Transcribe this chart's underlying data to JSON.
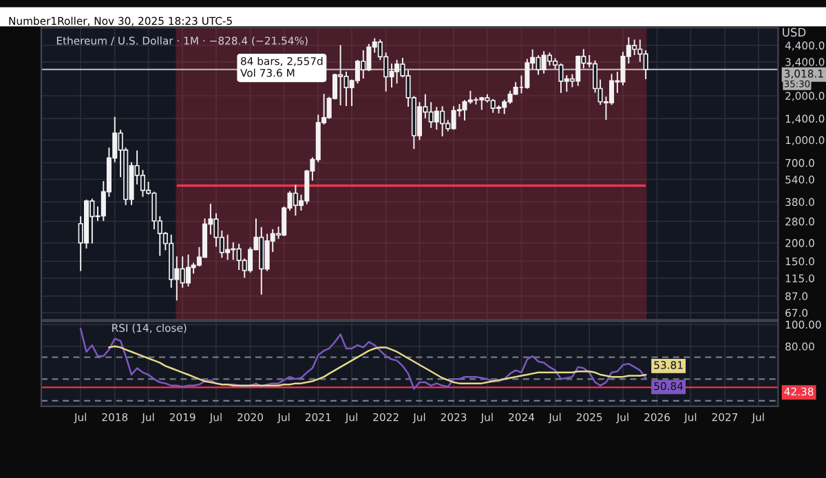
{
  "chart_data": [
    {
      "type": "candlestick",
      "title": "Ethereum / U.S. Dollar · 1M · −828.4 (−21.54%)",
      "ylabel": "USD",
      "annotations": [
        "Number1Roller, Nov 30, 2025 18:23 UTC-5",
        "84 bars, 2,557d\nVol 73.6 M",
        "35:30"
      ],
      "color": "#f2f2f2",
      "log": "y",
      "grid": true,
      "tick_labels": "y",
      "xlim": [
        "2016-12-01",
        "2027-10-15"
      ],
      "xticks": [
        {
          "value": "2017-07-01",
          "label": null
        },
        {
          "value": "2018-01-01",
          "label": null
        },
        {
          "value": "2018-07-01",
          "label": null
        },
        {
          "value": "2019-01-01",
          "label": null
        },
        {
          "value": "2019-07-01",
          "label": null
        },
        {
          "value": "2020-01-01",
          "label": null
        },
        {
          "value": "2020-07-01",
          "label": null
        },
        {
          "value": "2021-01-01",
          "label": null
        },
        {
          "value": "2021-07-01",
          "label": null
        },
        {
          "value": "2022-01-01",
          "label": null
        },
        {
          "value": "2022-07-01",
          "label": null
        },
        {
          "value": "2023-01-01",
          "label": null
        },
        {
          "value": "2023-07-01",
          "label": null
        },
        {
          "value": "2024-01-01",
          "label": null
        },
        {
          "value": "2024-07-01",
          "label": null
        },
        {
          "value": "2025-01-01",
          "label": null
        },
        {
          "value": "2025-07-01",
          "label": null
        },
        {
          "value": "2026-01-01",
          "label": null
        },
        {
          "value": "2026-07-01",
          "label": null
        },
        {
          "value": "2027-01-01",
          "label": null
        },
        {
          "value": "2027-07-01",
          "label": null
        }
      ],
      "ylim": [
        60,
        5800
      ],
      "yticks": [
        {
          "value": 67,
          "label": "67.0"
        },
        {
          "value": 87,
          "label": "87.0"
        },
        {
          "value": 115,
          "label": "115.0"
        },
        {
          "value": 150,
          "label": "150.0"
        },
        {
          "value": 200,
          "label": "200.0"
        },
        {
          "value": 280,
          "label": "280.0"
        },
        {
          "value": 380,
          "label": "380.0"
        },
        {
          "value": 540,
          "label": "540.0"
        },
        {
          "value": 700,
          "label": "700.0"
        },
        {
          "value": 1000,
          "label": "1,000.0"
        },
        {
          "value": 1400,
          "label": "1,400.0"
        },
        {
          "value": 2000,
          "label": "2,000.0"
        },
        {
          "value": 3400,
          "label": "3,400.0"
        },
        {
          "value": 4400,
          "label": "4,400.0"
        }
      ],
      "bands": [
        {
          "axis": "x",
          "from": "2018-12-01",
          "to": "2025-11-01",
          "color": "#b0283a"
        }
      ],
      "ref_lines": [
        {
          "axis": "y",
          "value": 490,
          "color": "#e8394d"
        },
        {
          "axis": "y",
          "value": 3018.1,
          "label": "3,018.1",
          "color": "#b0b0b0"
        }
      ],
      "x": [
        "2017-07",
        "2017-08",
        "2017-09",
        "2017-10",
        "2017-11",
        "2017-12",
        "2018-01",
        "2018-02",
        "2018-03",
        "2018-04",
        "2018-05",
        "2018-06",
        "2018-07",
        "2018-08",
        "2018-09",
        "2018-10",
        "2018-11",
        "2018-12",
        "2019-01",
        "2019-02",
        "2019-03",
        "2019-04",
        "2019-05",
        "2019-06",
        "2019-07",
        "2019-08",
        "2019-09",
        "2019-10",
        "2019-11",
        "2019-12",
        "2020-01",
        "2020-02",
        "2020-03",
        "2020-04",
        "2020-05",
        "2020-06",
        "2020-07",
        "2020-08",
        "2020-09",
        "2020-10",
        "2020-11",
        "2020-12",
        "2021-01",
        "2021-02",
        "2021-03",
        "2021-04",
        "2021-05",
        "2021-06",
        "2021-07",
        "2021-08",
        "2021-09",
        "2021-10",
        "2021-11",
        "2021-12",
        "2022-01",
        "2022-02",
        "2022-03",
        "2022-04",
        "2022-05",
        "2022-06",
        "2022-07",
        "2022-08",
        "2022-09",
        "2022-10",
        "2022-11",
        "2022-12",
        "2023-01",
        "2023-02",
        "2023-03",
        "2023-04",
        "2023-05",
        "2023-06",
        "2023-07",
        "2023-08",
        "2023-09",
        "2023-10",
        "2023-11",
        "2023-12",
        "2024-01",
        "2024-02",
        "2024-03",
        "2024-04",
        "2024-05",
        "2024-06",
        "2024-07",
        "2024-08",
        "2024-09",
        "2024-10",
        "2024-11",
        "2024-12",
        "2025-01",
        "2025-02",
        "2025-03",
        "2025-04",
        "2025-05",
        "2025-06",
        "2025-07",
        "2025-08",
        "2025-09",
        "2025-10",
        "2025-11"
      ],
      "ohlc": [
        [
          270,
          300,
          130,
          200
        ],
        [
          200,
          390,
          185,
          385
        ],
        [
          385,
          395,
          200,
          302
        ],
        [
          302,
          350,
          285,
          305
        ],
        [
          305,
          520,
          285,
          445
        ],
        [
          445,
          880,
          415,
          755
        ],
        [
          755,
          1420,
          715,
          1115
        ],
        [
          1115,
          1160,
          565,
          855
        ],
        [
          855,
          880,
          365,
          395
        ],
        [
          395,
          700,
          365,
          670
        ],
        [
          670,
          840,
          505,
          575
        ],
        [
          575,
          620,
          415,
          455
        ],
        [
          455,
          515,
          430,
          435
        ],
        [
          435,
          440,
          250,
          282
        ],
        [
          282,
          300,
          165,
          232
        ],
        [
          232,
          235,
          180,
          198
        ],
        [
          198,
          225,
          100,
          113
        ],
        [
          113,
          160,
          82,
          133
        ],
        [
          133,
          160,
          100,
          107
        ],
        [
          107,
          165,
          102,
          136
        ],
        [
          136,
          145,
          125,
          141
        ],
        [
          141,
          185,
          140,
          160
        ],
        [
          160,
          290,
          160,
          268
        ],
        [
          268,
          365,
          230,
          290
        ],
        [
          290,
          315,
          190,
          218
        ],
        [
          218,
          240,
          160,
          172
        ],
        [
          172,
          225,
          155,
          180
        ],
        [
          180,
          200,
          155,
          182
        ],
        [
          182,
          195,
          132,
          152
        ],
        [
          152,
          155,
          117,
          130
        ],
        [
          130,
          185,
          127,
          180
        ],
        [
          180,
          290,
          180,
          218
        ],
        [
          218,
          253,
          90,
          133
        ],
        [
          133,
          228,
          130,
          206
        ],
        [
          206,
          245,
          175,
          231
        ],
        [
          231,
          255,
          215,
          226
        ],
        [
          226,
          350,
          225,
          345
        ],
        [
          345,
          445,
          335,
          435
        ],
        [
          435,
          490,
          310,
          360
        ],
        [
          360,
          420,
          335,
          386
        ],
        [
          386,
          620,
          370,
          616
        ],
        [
          616,
          755,
          535,
          737
        ],
        [
          737,
          1470,
          714,
          1312
        ],
        [
          1312,
          2040,
          1290,
          1420
        ],
        [
          1420,
          1945,
          1410,
          1920
        ],
        [
          1920,
          2795,
          1910,
          2775
        ],
        [
          2775,
          4370,
          1740,
          2710
        ],
        [
          2710,
          2890,
          1720,
          2275
        ],
        [
          2275,
          2550,
          1720,
          2535
        ],
        [
          2535,
          3470,
          2450,
          3430
        ],
        [
          3430,
          4030,
          2650,
          3000
        ],
        [
          3000,
          4460,
          2970,
          4290
        ],
        [
          4290,
          4870,
          3960,
          4630
        ],
        [
          4630,
          4780,
          3530,
          3680
        ],
        [
          3680,
          3890,
          2160,
          2690
        ],
        [
          2690,
          3280,
          2300,
          2920
        ],
        [
          2920,
          3480,
          2450,
          3280
        ],
        [
          3280,
          3580,
          2700,
          2730
        ],
        [
          2730,
          2950,
          1700,
          1940
        ],
        [
          1940,
          1970,
          880,
          1070
        ],
        [
          1070,
          1790,
          1010,
          1680
        ],
        [
          1680,
          2030,
          1420,
          1550
        ],
        [
          1550,
          1790,
          1220,
          1330
        ],
        [
          1330,
          1660,
          1190,
          1570
        ],
        [
          1570,
          1680,
          1070,
          1295
        ],
        [
          1295,
          1350,
          1160,
          1195
        ],
        [
          1195,
          1680,
          1190,
          1585
        ],
        [
          1585,
          1740,
          1460,
          1605
        ],
        [
          1605,
          1850,
          1370,
          1820
        ],
        [
          1820,
          2140,
          1780,
          1870
        ],
        [
          1870,
          1930,
          1760,
          1875
        ],
        [
          1875,
          1940,
          1620,
          1935
        ],
        [
          1935,
          2030,
          1820,
          1855
        ],
        [
          1855,
          1880,
          1550,
          1645
        ],
        [
          1645,
          1700,
          1530,
          1670
        ],
        [
          1670,
          1860,
          1520,
          1815
        ],
        [
          1815,
          2140,
          1780,
          2050
        ],
        [
          2050,
          2450,
          2050,
          2280
        ],
        [
          2280,
          2720,
          2100,
          2280
        ],
        [
          2280,
          3520,
          2260,
          3340
        ],
        [
          3340,
          4090,
          3060,
          3640
        ],
        [
          3640,
          3730,
          2810,
          3010
        ],
        [
          3010,
          3980,
          2860,
          3760
        ],
        [
          3760,
          3890,
          3240,
          3440
        ],
        [
          3440,
          3560,
          3080,
          3235
        ],
        [
          3235,
          3280,
          2110,
          2510
        ],
        [
          2510,
          2730,
          2150,
          2600
        ],
        [
          2600,
          2770,
          2310,
          2515
        ],
        [
          2515,
          3710,
          2360,
          3700
        ],
        [
          3700,
          4110,
          3100,
          3335
        ],
        [
          3335,
          3740,
          3150,
          3300
        ],
        [
          3300,
          3440,
          2120,
          2240
        ],
        [
          2240,
          2550,
          1750,
          1820
        ],
        [
          1820,
          1955,
          1385,
          1795
        ],
        [
          1795,
          2790,
          1750,
          2530
        ],
        [
          2530,
          2880,
          2110,
          2485
        ],
        [
          2485,
          3940,
          2375,
          3700
        ],
        [
          3700,
          4950,
          3350,
          4390
        ],
        [
          4390,
          4770,
          3820,
          4140
        ],
        [
          4140,
          4760,
          3440,
          3846.5
        ],
        [
          3846.5,
          4030,
          2620,
          3018.1
        ]
      ]
    },
    {
      "type": "line",
      "annotations": [
        "RSI (14, close)"
      ],
      "grid": true,
      "xlim": [
        "2016-12-01",
        "2027-10-15"
      ],
      "xticks": [
        {
          "value": "2017-07-01",
          "label": "Jul"
        },
        {
          "value": "2018-01-01",
          "label": "2018"
        },
        {
          "value": "2018-07-01",
          "label": "Jul"
        },
        {
          "value": "2019-01-01",
          "label": "2019"
        },
        {
          "value": "2019-07-01",
          "label": "Jul"
        },
        {
          "value": "2020-01-01",
          "label": "2020"
        },
        {
          "value": "2020-07-01",
          "label": "Jul"
        },
        {
          "value": "2021-01-01",
          "label": "2021"
        },
        {
          "value": "2021-07-01",
          "label": "Jul"
        },
        {
          "value": "2022-01-01",
          "label": "2022"
        },
        {
          "value": "2022-07-01",
          "label": "Jul"
        },
        {
          "value": "2023-01-01",
          "label": "2023"
        },
        {
          "value": "2023-07-01",
          "label": "Jul"
        },
        {
          "value": "2024-01-01",
          "label": "2024"
        },
        {
          "value": "2024-07-01",
          "label": "Jul"
        },
        {
          "value": "2025-01-01",
          "label": "2025"
        },
        {
          "value": "2025-07-01",
          "label": "Jul"
        },
        {
          "value": "2026-01-01",
          "label": "2026"
        },
        {
          "value": "2026-07-01",
          "label": "Jul"
        },
        {
          "value": "2027-01-01",
          "label": "2027"
        },
        {
          "value": "2027-07-01",
          "label": "Jul"
        }
      ],
      "ylim": [
        25,
        103
      ],
      "yticks": [
        {
          "value": 80,
          "label": "80.00"
        },
        {
          "value": 100,
          "label": "100.00"
        }
      ],
      "ref_lines": [
        {
          "axis": "y",
          "value": 70,
          "color": "#787b86",
          "line_style": "dashed"
        },
        {
          "axis": "y",
          "value": 50,
          "color": "#787b86",
          "line_style": "dashed"
        },
        {
          "axis": "y",
          "value": 30,
          "color": "#787b86",
          "line_style": "dashed"
        },
        {
          "axis": "y",
          "value": 42.38,
          "label": "42.38",
          "color": "#f23645"
        }
      ],
      "x": [
        "2017-07",
        "2017-08",
        "2017-09",
        "2017-10",
        "2017-11",
        "2017-12",
        "2018-01",
        "2018-02",
        "2018-03",
        "2018-04",
        "2018-05",
        "2018-06",
        "2018-07",
        "2018-08",
        "2018-09",
        "2018-10",
        "2018-11",
        "2018-12",
        "2019-01",
        "2019-02",
        "2019-03",
        "2019-04",
        "2019-05",
        "2019-06",
        "2019-07",
        "2019-08",
        "2019-09",
        "2019-10",
        "2019-11",
        "2019-12",
        "2020-01",
        "2020-02",
        "2020-03",
        "2020-04",
        "2020-05",
        "2020-06",
        "2020-07",
        "2020-08",
        "2020-09",
        "2020-10",
        "2020-11",
        "2020-12",
        "2021-01",
        "2021-02",
        "2021-03",
        "2021-04",
        "2021-05",
        "2021-06",
        "2021-07",
        "2021-08",
        "2021-09",
        "2021-10",
        "2021-11",
        "2021-12",
        "2022-01",
        "2022-02",
        "2022-03",
        "2022-04",
        "2022-05",
        "2022-06",
        "2022-07",
        "2022-08",
        "2022-09",
        "2022-10",
        "2022-11",
        "2022-12",
        "2023-01",
        "2023-02",
        "2023-03",
        "2023-04",
        "2023-05",
        "2023-06",
        "2023-07",
        "2023-08",
        "2023-09",
        "2023-10",
        "2023-11",
        "2023-12",
        "2024-01",
        "2024-02",
        "2024-03",
        "2024-04",
        "2024-05",
        "2024-06",
        "2024-07",
        "2024-08",
        "2024-09",
        "2024-10",
        "2024-11",
        "2024-12",
        "2025-01",
        "2025-02",
        "2025-03",
        "2025-04",
        "2025-05",
        "2025-06",
        "2025-07",
        "2025-08",
        "2025-09",
        "2025-10",
        "2025-11"
      ],
      "series": [
        {
          "color": "#7e57c2",
          "value_labels": [
            null,
            null,
            null,
            null,
            null,
            null,
            null,
            null,
            null,
            null,
            null,
            null,
            null,
            null,
            null,
            null,
            null,
            null,
            null,
            null,
            null,
            null,
            null,
            null,
            null,
            null,
            null,
            null,
            null,
            null,
            null,
            null,
            null,
            null,
            null,
            null,
            null,
            null,
            null,
            null,
            null,
            null,
            null,
            null,
            null,
            null,
            null,
            null,
            null,
            null,
            null,
            null,
            null,
            null,
            null,
            null,
            null,
            null,
            null,
            null,
            null,
            null,
            null,
            null,
            null,
            null,
            null,
            null,
            null,
            null,
            null,
            null,
            null,
            null,
            null,
            null,
            null,
            null,
            null,
            null,
            null,
            null,
            null,
            null,
            null,
            null,
            null,
            null,
            null,
            null,
            null,
            null,
            null,
            null,
            null,
            null,
            null,
            null,
            null,
            null,
            "50.84"
          ],
          "values": [
            96,
            75,
            81,
            71,
            71,
            77,
            87,
            85,
            71,
            54,
            60,
            56,
            54,
            50,
            47,
            46,
            44,
            44,
            43,
            44,
            44,
            45,
            48,
            49,
            46,
            45,
            45,
            45,
            44,
            43,
            44,
            46,
            43,
            45,
            46,
            46,
            49,
            52,
            50,
            51,
            56,
            60,
            72,
            76,
            78,
            84,
            91,
            78,
            78,
            81,
            79,
            84,
            81,
            76,
            71,
            68,
            67,
            62,
            55,
            41,
            47,
            47,
            44,
            46,
            44,
            43,
            50,
            50,
            52,
            52,
            52,
            51,
            50,
            48,
            48,
            50,
            55,
            58,
            56,
            68,
            71,
            66,
            65,
            61,
            58,
            50,
            51,
            52,
            61,
            60,
            56,
            47,
            44,
            47,
            56,
            57,
            63,
            64,
            61,
            58,
            50.84
          ]
        },
        {
          "color": "#e6d98a",
          "value_labels": [
            null,
            null,
            null,
            null,
            null,
            null,
            null,
            null,
            null,
            null,
            null,
            null,
            null,
            null,
            null,
            null,
            null,
            null,
            null,
            null,
            null,
            null,
            null,
            null,
            null,
            null,
            null,
            null,
            null,
            null,
            null,
            null,
            null,
            null,
            null,
            null,
            null,
            null,
            null,
            null,
            null,
            null,
            null,
            null,
            null,
            null,
            null,
            null,
            null,
            null,
            null,
            null,
            null,
            null,
            null,
            null,
            null,
            null,
            null,
            null,
            null,
            null,
            null,
            null,
            null,
            null,
            null,
            null,
            null,
            null,
            null,
            null,
            null,
            null,
            null,
            null,
            null,
            null,
            null,
            null,
            null,
            null,
            null,
            null,
            null,
            null,
            null,
            null,
            null,
            null,
            null,
            null,
            null,
            null,
            null,
            null,
            null,
            null,
            null,
            null,
            "53.81"
          ],
          "values": [
            null,
            null,
            null,
            null,
            null,
            79,
            80,
            79,
            77,
            75,
            73,
            71,
            69,
            67,
            65,
            62,
            60,
            58,
            56,
            54,
            52,
            50,
            48,
            47,
            46,
            45,
            45,
            44,
            44,
            44,
            44,
            44,
            44,
            44,
            44,
            44,
            45,
            45,
            46,
            46,
            47,
            48,
            50,
            52,
            55,
            58,
            61,
            64,
            67,
            70,
            73,
            76,
            78,
            79,
            79,
            77,
            75,
            72,
            69,
            66,
            63,
            60,
            57,
            54,
            51,
            49,
            47,
            46,
            46,
            46,
            46,
            46,
            47,
            48,
            49,
            50,
            51,
            52,
            53,
            54,
            55,
            56,
            56,
            56,
            56,
            56,
            56,
            56,
            57,
            57,
            57,
            56,
            54,
            53,
            52,
            52,
            52,
            53,
            53,
            53,
            53.81
          ]
        }
      ]
    }
  ]
}
